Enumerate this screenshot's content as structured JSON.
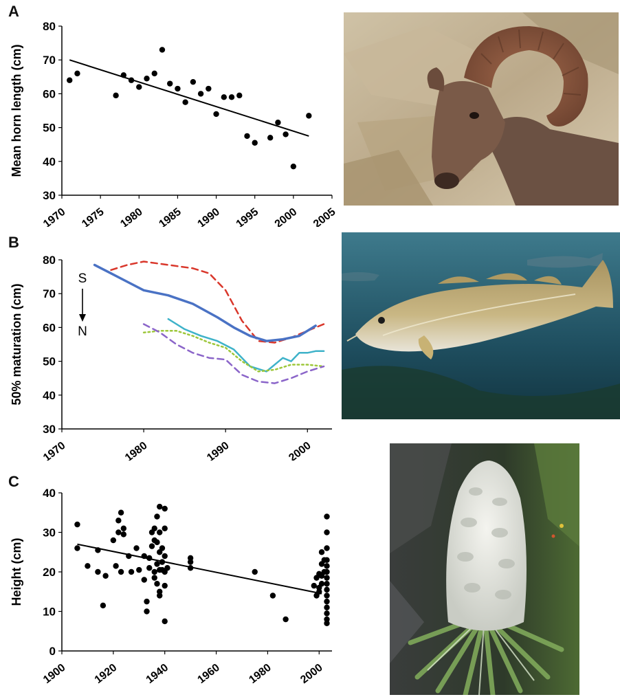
{
  "chart_data": [
    {
      "panel": "A",
      "type": "scatter",
      "ylabel": "Mean horn length (cm)",
      "xlim": [
        1970,
        2005
      ],
      "ylim": [
        30,
        80
      ],
      "xticks": [
        "1970",
        "1975",
        "1980",
        "1985",
        "1990",
        "1995",
        "2000",
        "2005"
      ],
      "yticks": [
        "30",
        "40",
        "50",
        "60",
        "70",
        "80"
      ],
      "points": [
        [
          1971,
          64
        ],
        [
          1972,
          66
        ],
        [
          1977,
          59.5
        ],
        [
          1978,
          65.5
        ],
        [
          1979,
          64
        ],
        [
          1980,
          62
        ],
        [
          1981,
          64.5
        ],
        [
          1982,
          66
        ],
        [
          1983,
          73
        ],
        [
          1984,
          63
        ],
        [
          1985,
          61.5
        ],
        [
          1986,
          57.5
        ],
        [
          1987,
          63.5
        ],
        [
          1988,
          60
        ],
        [
          1989,
          61.5
        ],
        [
          1990,
          54
        ],
        [
          1991,
          59
        ],
        [
          1992,
          59
        ],
        [
          1993,
          59.5
        ],
        [
          1994,
          47.5
        ],
        [
          1995,
          45.5
        ],
        [
          1997,
          47
        ],
        [
          1998,
          51.5
        ],
        [
          1999,
          48
        ],
        [
          2000,
          38.5
        ],
        [
          2002,
          53.5
        ]
      ],
      "trendline": [
        [
          1971,
          70
        ],
        [
          2002,
          47.5
        ]
      ]
    },
    {
      "panel": "B",
      "type": "line",
      "ylabel": "50% maturation (cm)",
      "xlim": [
        1970,
        2003
      ],
      "ylim": [
        30,
        80
      ],
      "xticks": [
        "1970",
        "1980",
        "1990",
        "2000"
      ],
      "yticks": [
        "30",
        "40",
        "50",
        "60",
        "70",
        "80"
      ],
      "annotation_top": "S",
      "annotation_bottom": "N",
      "series": [
        {
          "color": "#d9372b",
          "dash": "dashed",
          "values": [
            [
              1976,
              77
            ],
            [
              1978,
              78.5
            ],
            [
              1980,
              79.5
            ],
            [
              1983,
              78.5
            ],
            [
              1986,
              77.5
            ],
            [
              1988,
              76
            ],
            [
              1990,
              71
            ],
            [
              1992,
              62
            ],
            [
              1994,
              56
            ],
            [
              1996,
              55.5
            ],
            [
              1998,
              57
            ],
            [
              2000,
              59
            ],
            [
              2002,
              61
            ]
          ]
        },
        {
          "color": "#4a72c4",
          "dash": "solid",
          "values": [
            [
              1974,
              78.5
            ],
            [
              1976,
              76
            ],
            [
              1978,
              73.5
            ],
            [
              1980,
              71
            ],
            [
              1983,
              69.5
            ],
            [
              1986,
              67
            ],
            [
              1989,
              63
            ],
            [
              1991,
              60
            ],
            [
              1993,
              57.5
            ],
            [
              1995,
              56
            ],
            [
              1997,
              56.5
            ],
            [
              1999,
              57.5
            ],
            [
              2001,
              60.5
            ]
          ]
        },
        {
          "color": "#3eb2c9",
          "dash": "solid",
          "values": [
            [
              1983,
              62.5
            ],
            [
              1985,
              59.5
            ],
            [
              1987,
              57.5
            ],
            [
              1989,
              56
            ],
            [
              1991,
              53.5
            ],
            [
              1993,
              48.5
            ],
            [
              1995,
              47
            ],
            [
              1997,
              51
            ],
            [
              1998,
              50
            ],
            [
              1999,
              52.5
            ],
            [
              2000,
              52.5
            ],
            [
              2001,
              53
            ],
            [
              2002,
              53
            ]
          ]
        },
        {
          "color": "#9dc73a",
          "dash": "dotted",
          "values": [
            [
              1980,
              58.5
            ],
            [
              1982,
              59
            ],
            [
              1984,
              59
            ],
            [
              1986,
              57.5
            ],
            [
              1988,
              55.5
            ],
            [
              1990,
              54
            ],
            [
              1992,
              50
            ],
            [
              1994,
              47
            ],
            [
              1996,
              47.5
            ],
            [
              1998,
              49
            ],
            [
              2000,
              49
            ],
            [
              2002,
              48.5
            ]
          ]
        },
        {
          "color": "#8b65c9",
          "dash": "dashed",
          "values": [
            [
              1980,
              61
            ],
            [
              1982,
              58.5
            ],
            [
              1984,
              55
            ],
            [
              1986,
              52.5
            ],
            [
              1988,
              51
            ],
            [
              1990,
              50.5
            ],
            [
              1992,
              46
            ],
            [
              1994,
              44
            ],
            [
              1996,
              43.5
            ],
            [
              1998,
              45
            ],
            [
              2000,
              47
            ],
            [
              2002,
              48.5
            ]
          ]
        }
      ]
    },
    {
      "panel": "C",
      "type": "scatter",
      "ylabel": "Height (cm)",
      "xlim": [
        1900,
        2005
      ],
      "ylim": [
        0,
        40
      ],
      "xticks": [
        "1900",
        "1920",
        "1940",
        "1960",
        "1980",
        "2000"
      ],
      "yticks": [
        "0",
        "10",
        "20",
        "30",
        "40"
      ],
      "points": [
        [
          1906,
          32
        ],
        [
          1906,
          26
        ],
        [
          1910,
          21.5
        ],
        [
          1914,
          20
        ],
        [
          1914,
          25.5
        ],
        [
          1916,
          11.5
        ],
        [
          1917,
          19
        ],
        [
          1920,
          28
        ],
        [
          1921,
          21.5
        ],
        [
          1922,
          33
        ],
        [
          1922,
          30
        ],
        [
          1923,
          35
        ],
        [
          1923,
          20
        ],
        [
          1924,
          31
        ],
        [
          1924,
          29.5
        ],
        [
          1926,
          24
        ],
        [
          1927,
          20
        ],
        [
          1929,
          26
        ],
        [
          1930,
          20.5
        ],
        [
          1932,
          24
        ],
        [
          1932,
          18
        ],
        [
          1933,
          12.5
        ],
        [
          1933,
          10
        ],
        [
          1934,
          23.5
        ],
        [
          1934,
          21
        ],
        [
          1935,
          30
        ],
        [
          1935,
          26.5
        ],
        [
          1936,
          31
        ],
        [
          1936,
          28
        ],
        [
          1936,
          20
        ],
        [
          1936,
          18.5
        ],
        [
          1937,
          34
        ],
        [
          1937,
          27.5
        ],
        [
          1937,
          22
        ],
        [
          1937,
          17
        ],
        [
          1938,
          36.5
        ],
        [
          1938,
          30
        ],
        [
          1938,
          25
        ],
        [
          1938,
          20.5
        ],
        [
          1938,
          15
        ],
        [
          1938,
          14
        ],
        [
          1939,
          26
        ],
        [
          1939,
          22.5
        ],
        [
          1939,
          20.5
        ],
        [
          1940,
          36
        ],
        [
          1940,
          31
        ],
        [
          1940,
          24
        ],
        [
          1940,
          20
        ],
        [
          1940,
          16.5
        ],
        [
          1940,
          7.5
        ],
        [
          1941,
          21
        ],
        [
          1950,
          23.5
        ],
        [
          1950,
          22.5
        ],
        [
          1950,
          21
        ],
        [
          1975,
          20
        ],
        [
          1982,
          14
        ],
        [
          1987,
          8
        ],
        [
          1998,
          16.5
        ],
        [
          1999,
          18.5
        ],
        [
          1999,
          14
        ],
        [
          2000,
          19.5
        ],
        [
          2000,
          16
        ],
        [
          2000,
          15
        ],
        [
          2001,
          25
        ],
        [
          2001,
          22
        ],
        [
          2001,
          19
        ],
        [
          2001,
          17
        ],
        [
          2002,
          23
        ],
        [
          2002,
          20
        ],
        [
          2003,
          34
        ],
        [
          2003,
          30
        ],
        [
          2003,
          26
        ],
        [
          2003,
          23
        ],
        [
          2003,
          21.5
        ],
        [
          2003,
          20
        ],
        [
          2003,
          18.5
        ],
        [
          2003,
          17
        ],
        [
          2003,
          15.5
        ],
        [
          2003,
          14
        ],
        [
          2003,
          12.5
        ],
        [
          2003,
          11
        ],
        [
          2003,
          9.5
        ],
        [
          2003,
          8
        ],
        [
          2003,
          7
        ]
      ],
      "trendline": [
        [
          1906,
          27
        ],
        [
          2001,
          14.5
        ]
      ]
    }
  ],
  "panels": {
    "a_label": "A",
    "b_label": "B",
    "c_label": "C"
  },
  "photos": {
    "sheep": "bighorn-sheep-photo",
    "fish": "cod-fish-photo",
    "plant": "snow-lotus-plant-photo"
  }
}
